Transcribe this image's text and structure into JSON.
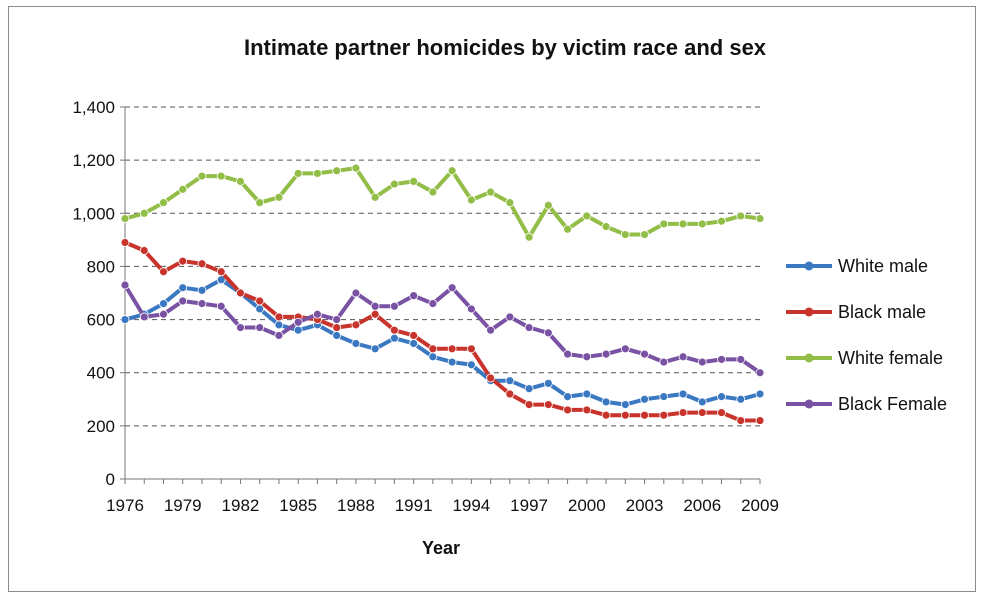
{
  "chart_data": {
    "type": "line",
    "title": "Intimate partner homicides by victim race and sex",
    "xlabel": "Year",
    "ylabel": "",
    "ylim": [
      0,
      1400
    ],
    "yticks": [
      0,
      200,
      400,
      600,
      800,
      1000,
      1200,
      1400
    ],
    "ytick_labels": [
      "0",
      "200",
      "400",
      "600",
      "800",
      "1,000",
      "1,200",
      "1,400"
    ],
    "xtick_labels": [
      "1976",
      "1979",
      "1982",
      "1985",
      "1988",
      "1991",
      "1994",
      "1997",
      "2000",
      "2003",
      "2006",
      "2009"
    ],
    "x": [
      1976,
      1977,
      1978,
      1979,
      1980,
      1981,
      1982,
      1983,
      1984,
      1985,
      1986,
      1987,
      1988,
      1989,
      1990,
      1991,
      1992,
      1993,
      1994,
      1995,
      1996,
      1997,
      1998,
      1999,
      2000,
      2001,
      2002,
      2003,
      2004,
      2005,
      2006,
      2007,
      2008,
      2009
    ],
    "grid": "horizontal dashed",
    "legend_position": "right",
    "series": [
      {
        "name": "White male",
        "color": "#3a78c2",
        "values": [
          600,
          620,
          660,
          720,
          710,
          750,
          700,
          640,
          580,
          560,
          580,
          540,
          510,
          490,
          530,
          510,
          460,
          440,
          430,
          370,
          370,
          340,
          360,
          310,
          320,
          290,
          280,
          300,
          310,
          320,
          290,
          310,
          300,
          320
        ]
      },
      {
        "name": "Black male",
        "color": "#c8342c",
        "values": [
          890,
          860,
          780,
          820,
          810,
          780,
          700,
          670,
          610,
          610,
          600,
          570,
          580,
          620,
          560,
          540,
          490,
          490,
          490,
          380,
          320,
          280,
          280,
          260,
          260,
          240,
          240,
          240,
          240,
          250,
          250,
          250,
          220,
          220
        ]
      },
      {
        "name": "White female",
        "color": "#92bd46",
        "values": [
          980,
          1000,
          1040,
          1090,
          1140,
          1140,
          1120,
          1040,
          1060,
          1150,
          1150,
          1160,
          1170,
          1060,
          1110,
          1120,
          1080,
          1160,
          1050,
          1080,
          1040,
          910,
          1030,
          940,
          990,
          950,
          920,
          920,
          960,
          960,
          960,
          970,
          990,
          980
        ]
      },
      {
        "name": "Black Female",
        "color": "#7952a3",
        "values": [
          730,
          610,
          620,
          670,
          660,
          650,
          570,
          570,
          540,
          590,
          620,
          600,
          700,
          650,
          650,
          690,
          660,
          720,
          640,
          560,
          610,
          570,
          550,
          470,
          460,
          470,
          490,
          470,
          440,
          460,
          440,
          450,
          450,
          400
        ]
      }
    ]
  }
}
